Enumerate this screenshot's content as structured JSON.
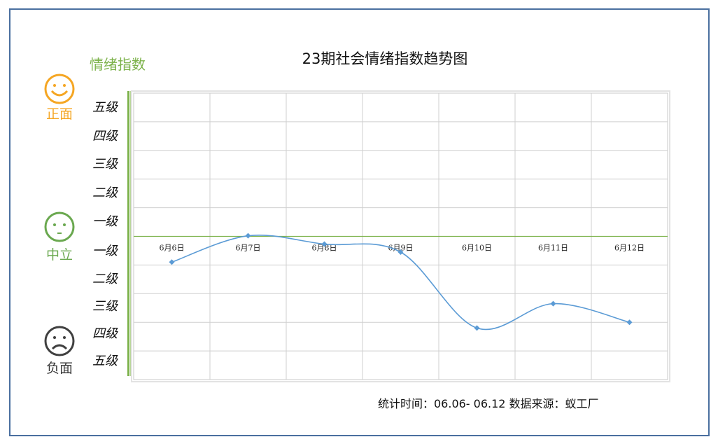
{
  "chart_data": {
    "type": "line",
    "title": "23期社会情绪指数趋势图",
    "ylabel": "情绪指数",
    "categories": [
      "6月6日",
      "6月7日",
      "6月8日",
      "6月9日",
      "6月10日",
      "6月11日",
      "6月12日"
    ],
    "values": [
      -0.9,
      0.02,
      -0.27,
      -0.55,
      -3.2,
      -2.35,
      -3.0
    ],
    "ylim": [
      -5,
      5
    ],
    "y_ticks_positive": [
      "五级",
      "四级",
      "三级",
      "二级",
      "一级"
    ],
    "y_ticks_negative": [
      "一级",
      "二级",
      "三级",
      "四级",
      "五级"
    ],
    "grid": true,
    "smooth": true,
    "line_color": "#5b9bd5",
    "zero_line_color": "#7cb24a"
  },
  "faces": {
    "positive": {
      "label": "正面",
      "color": "#f5a623"
    },
    "neutral": {
      "label": "中立",
      "color": "#6aa84f"
    },
    "negative": {
      "label": "负面",
      "color": "#404040"
    }
  },
  "footer": "统计时间：06.06- 06.12 数据来源：蚁工厂"
}
